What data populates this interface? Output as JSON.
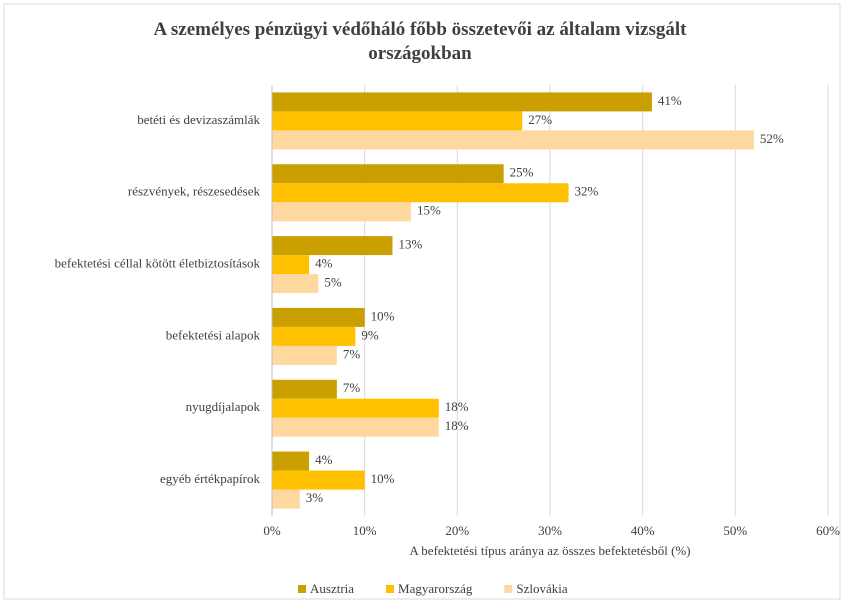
{
  "chart_data": {
    "type": "barh",
    "title": "A személyes pénzügyi védőháló főbb összetevői az általam vizsgált országokban",
    "xlabel": "A befektetési típus aránya az összes befektetésből (%)",
    "categories": [
      "betéti és devizaszámlák",
      "részvények, részesedések",
      "befektetési céllal kötött életbiztosítások",
      "befektetési alapok",
      "nyugdíjalapok",
      "egyéb értékpapírok"
    ],
    "series": [
      {
        "name": "Ausztria",
        "color": "#C9A000",
        "values": [
          41,
          25,
          13,
          10,
          7,
          4
        ],
        "value_labels": [
          "41%",
          "25%",
          "13%",
          "10%",
          "7%",
          "4%"
        ]
      },
      {
        "name": "Magyarország",
        "color": "#FFC000",
        "values": [
          27,
          32,
          4,
          9,
          18,
          10
        ],
        "value_labels": [
          "27%",
          "32%",
          "4%",
          "9%",
          "18%",
          "10%"
        ]
      },
      {
        "name": "Szlovákia",
        "color": "#FFD8A0",
        "values": [
          52,
          15,
          5,
          7,
          18,
          3
        ],
        "value_labels": [
          "52%",
          "15%",
          "5%",
          "7%",
          "18%",
          "3%"
        ]
      }
    ],
    "xlim": [
      0,
      60
    ],
    "xticks": [
      {
        "value": 0,
        "label": "0%"
      },
      {
        "value": 10,
        "label": "10%"
      },
      {
        "value": 20,
        "label": "20%"
      },
      {
        "value": 30,
        "label": "30%"
      },
      {
        "value": 40,
        "label": "40%"
      },
      {
        "value": 50,
        "label": "50%"
      },
      {
        "value": 60,
        "label": "60%"
      }
    ],
    "grid": true,
    "legend": "bottom"
  }
}
